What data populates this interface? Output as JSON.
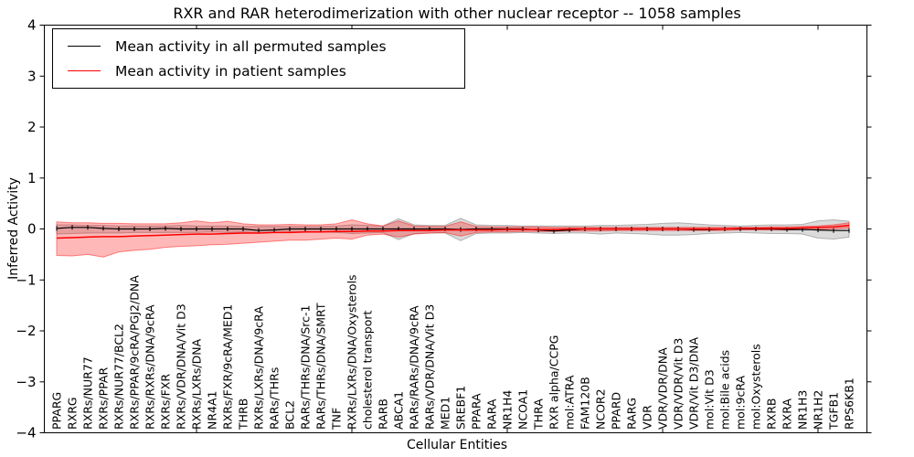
{
  "title": "RXR and RAR heterodimerization with other nuclear receptor -- 1058 samples",
  "legend": {
    "items": [
      {
        "label": "Mean activity in all permuted samples",
        "color": "#000000"
      },
      {
        "label": "Mean activity in patient samples",
        "color": "#ff0000"
      }
    ]
  },
  "colors": {
    "permuted_line": "#000000",
    "patient_line": "#ff0000",
    "permuted_band_fill": "rgba(0,0,0,0.14)",
    "permuted_band_edge": "rgba(0,0,0,0.25)",
    "patient_band_fill": "rgba(255,0,0,0.28)",
    "patient_band_edge": "rgba(255,0,0,0.45)",
    "axis": "#000000"
  },
  "chart_data": {
    "type": "line",
    "title": "RXR and RAR heterodimerization with other nuclear receptor -- 1058 samples",
    "xlabel": "Cellular Entities",
    "ylabel": "Inferred Activity",
    "ylim": [
      -4,
      4
    ],
    "yticks": [
      -4,
      -3,
      -2,
      -1,
      0,
      1,
      2,
      3,
      4
    ],
    "ytick_labels": [
      "−4",
      "−3",
      "−2",
      "−1",
      "0",
      "1",
      "2",
      "3",
      "4"
    ],
    "xticks_numeric": [
      10,
      20,
      30,
      40,
      50
    ],
    "grid": false,
    "legend_position": "upper left",
    "categories": [
      "PPARG",
      "RXRG",
      "RXRs/NUR77",
      "RXRs/PPAR",
      "RXRs/NUR77/BCL2",
      "RXRs/PPAR/9cRA/PGJ2/DNA",
      "RXRs/RXRs/DNA/9cRA",
      "RXRs/FXR",
      "RXRs/VDR/DNA/Vit D3",
      "RXRs/LXRs/DNA",
      "NR4A1",
      "RXRs/FXR/9cRA/MED1",
      "THRB",
      "RXRs/LXRs/DNA/9cRA",
      "RARs/THRs",
      "BCL2",
      "RARs/THRs/DNA/Src-1",
      "RARs/THRs/DNA/SMRT",
      "TNF",
      "RXRs/LXRs/DNA/Oxysterols",
      "cholesterol transport",
      "RARB",
      "ABCA1",
      "RARs/RARs/DNA/9cRA",
      "RARs/VDR/DNA/Vit D3",
      "MED1",
      "SREBF1",
      "PPARA",
      "RARA",
      "NR1H4",
      "NCOA1",
      "THRA",
      "RXR alpha/CCPG",
      "mol:ATRA",
      "FAM120B",
      "NCOR2",
      "PPARD",
      "RARG",
      "VDR",
      "VDR/VDR/DNA",
      "VDR/VDR/Vit D3",
      "VDR/Vit D3/DNA",
      "mol:Vit D3",
      "mol:Bile acids",
      "mol:9cRA",
      "mol:Oxysterols",
      "RXRB",
      "RXRA",
      "NR1H3",
      "NR1H2",
      "TGFB1",
      "RPS6KB1"
    ],
    "series": [
      {
        "name": "Mean activity in all permuted samples",
        "color": "#000000",
        "marker": "|",
        "values": [
          0.01,
          0.03,
          0.03,
          0.01,
          0.0,
          0.0,
          0.0,
          0.01,
          0.0,
          0.0,
          0.0,
          0.0,
          0.0,
          -0.03,
          -0.02,
          0.0,
          0.0,
          0.0,
          0.0,
          0.0,
          0.0,
          0.0,
          0.0,
          0.0,
          0.0,
          0.0,
          -0.01,
          0.0,
          0.0,
          0.0,
          0.0,
          -0.02,
          -0.04,
          -0.02,
          0.0,
          0.0,
          0.0,
          0.0,
          0.0,
          0.0,
          0.0,
          -0.01,
          -0.01,
          0.0,
          0.0,
          0.0,
          0.0,
          -0.01,
          -0.01,
          -0.02,
          -0.03,
          -0.03
        ],
        "band_upper": [
          0.08,
          0.08,
          0.07,
          0.07,
          0.06,
          0.06,
          0.06,
          0.06,
          0.07,
          0.06,
          0.06,
          0.06,
          0.05,
          0.05,
          0.05,
          0.05,
          0.05,
          0.05,
          0.06,
          0.08,
          0.07,
          0.06,
          0.2,
          0.08,
          0.07,
          0.07,
          0.21,
          0.08,
          0.07,
          0.07,
          0.06,
          0.06,
          0.06,
          0.06,
          0.06,
          0.07,
          0.07,
          0.08,
          0.09,
          0.11,
          0.12,
          0.1,
          0.08,
          0.07,
          0.06,
          0.07,
          0.08,
          0.08,
          0.09,
          0.16,
          0.18,
          0.15
        ],
        "band_lower": [
          -0.1,
          -0.09,
          -0.08,
          -0.08,
          -0.08,
          -0.07,
          -0.07,
          -0.07,
          -0.07,
          -0.07,
          -0.06,
          -0.07,
          -0.06,
          -0.08,
          -0.07,
          -0.06,
          -0.06,
          -0.06,
          -0.07,
          -0.09,
          -0.08,
          -0.07,
          -0.21,
          -0.09,
          -0.08,
          -0.08,
          -0.23,
          -0.09,
          -0.08,
          -0.08,
          -0.07,
          -0.08,
          -0.09,
          -0.08,
          -0.08,
          -0.1,
          -0.08,
          -0.09,
          -0.1,
          -0.12,
          -0.12,
          -0.11,
          -0.09,
          -0.08,
          -0.07,
          -0.08,
          -0.09,
          -0.09,
          -0.1,
          -0.18,
          -0.2,
          -0.16
        ],
        "band_fill": "rgba(0,0,0,0.14)",
        "band_edge": "rgba(0,0,0,0.25)"
      },
      {
        "name": "Mean activity in patient samples",
        "color": "#ff0000",
        "marker": null,
        "values": [
          -0.18,
          -0.17,
          -0.16,
          -0.15,
          -0.15,
          -0.14,
          -0.13,
          -0.12,
          -0.11,
          -0.1,
          -0.1,
          -0.09,
          -0.08,
          -0.08,
          -0.07,
          -0.07,
          -0.06,
          -0.06,
          -0.05,
          -0.05,
          -0.04,
          -0.04,
          -0.03,
          -0.03,
          -0.03,
          -0.02,
          -0.02,
          -0.02,
          -0.02,
          -0.01,
          -0.01,
          -0.01,
          -0.01,
          0.0,
          0.0,
          0.0,
          0.0,
          0.0,
          0.0,
          0.0,
          0.0,
          0.0,
          0.0,
          0.0,
          0.01,
          0.01,
          0.01,
          0.01,
          0.02,
          0.03,
          0.04,
          0.07
        ],
        "band_upper": [
          0.14,
          0.12,
          0.12,
          0.11,
          0.11,
          0.1,
          0.1,
          0.1,
          0.12,
          0.16,
          0.12,
          0.15,
          0.1,
          0.08,
          0.08,
          0.09,
          0.08,
          0.08,
          0.1,
          0.18,
          0.1,
          0.06,
          0.16,
          0.06,
          0.05,
          0.05,
          0.14,
          0.05,
          0.04,
          0.04,
          0.04,
          0.04,
          0.03,
          0.03,
          0.03,
          0.03,
          0.03,
          0.03,
          0.03,
          0.03,
          0.03,
          0.03,
          0.03,
          0.03,
          0.03,
          0.03,
          0.04,
          0.04,
          0.05,
          0.06,
          0.08,
          0.12
        ],
        "band_lower": [
          -0.52,
          -0.53,
          -0.5,
          -0.55,
          -0.45,
          -0.42,
          -0.4,
          -0.36,
          -0.34,
          -0.33,
          -0.31,
          -0.3,
          -0.28,
          -0.26,
          -0.24,
          -0.22,
          -0.22,
          -0.2,
          -0.18,
          -0.2,
          -0.12,
          -0.1,
          -0.16,
          -0.1,
          -0.08,
          -0.07,
          -0.14,
          -0.07,
          -0.06,
          -0.06,
          -0.05,
          -0.05,
          -0.05,
          -0.04,
          -0.04,
          -0.04,
          -0.03,
          -0.03,
          -0.03,
          -0.03,
          -0.03,
          -0.03,
          -0.03,
          -0.03,
          -0.02,
          -0.02,
          -0.02,
          -0.02,
          -0.01,
          -0.01,
          0.0,
          0.02
        ],
        "band_fill": "rgba(255,0,0,0.28)",
        "band_edge": "rgba(255,0,0,0.45)"
      }
    ]
  }
}
